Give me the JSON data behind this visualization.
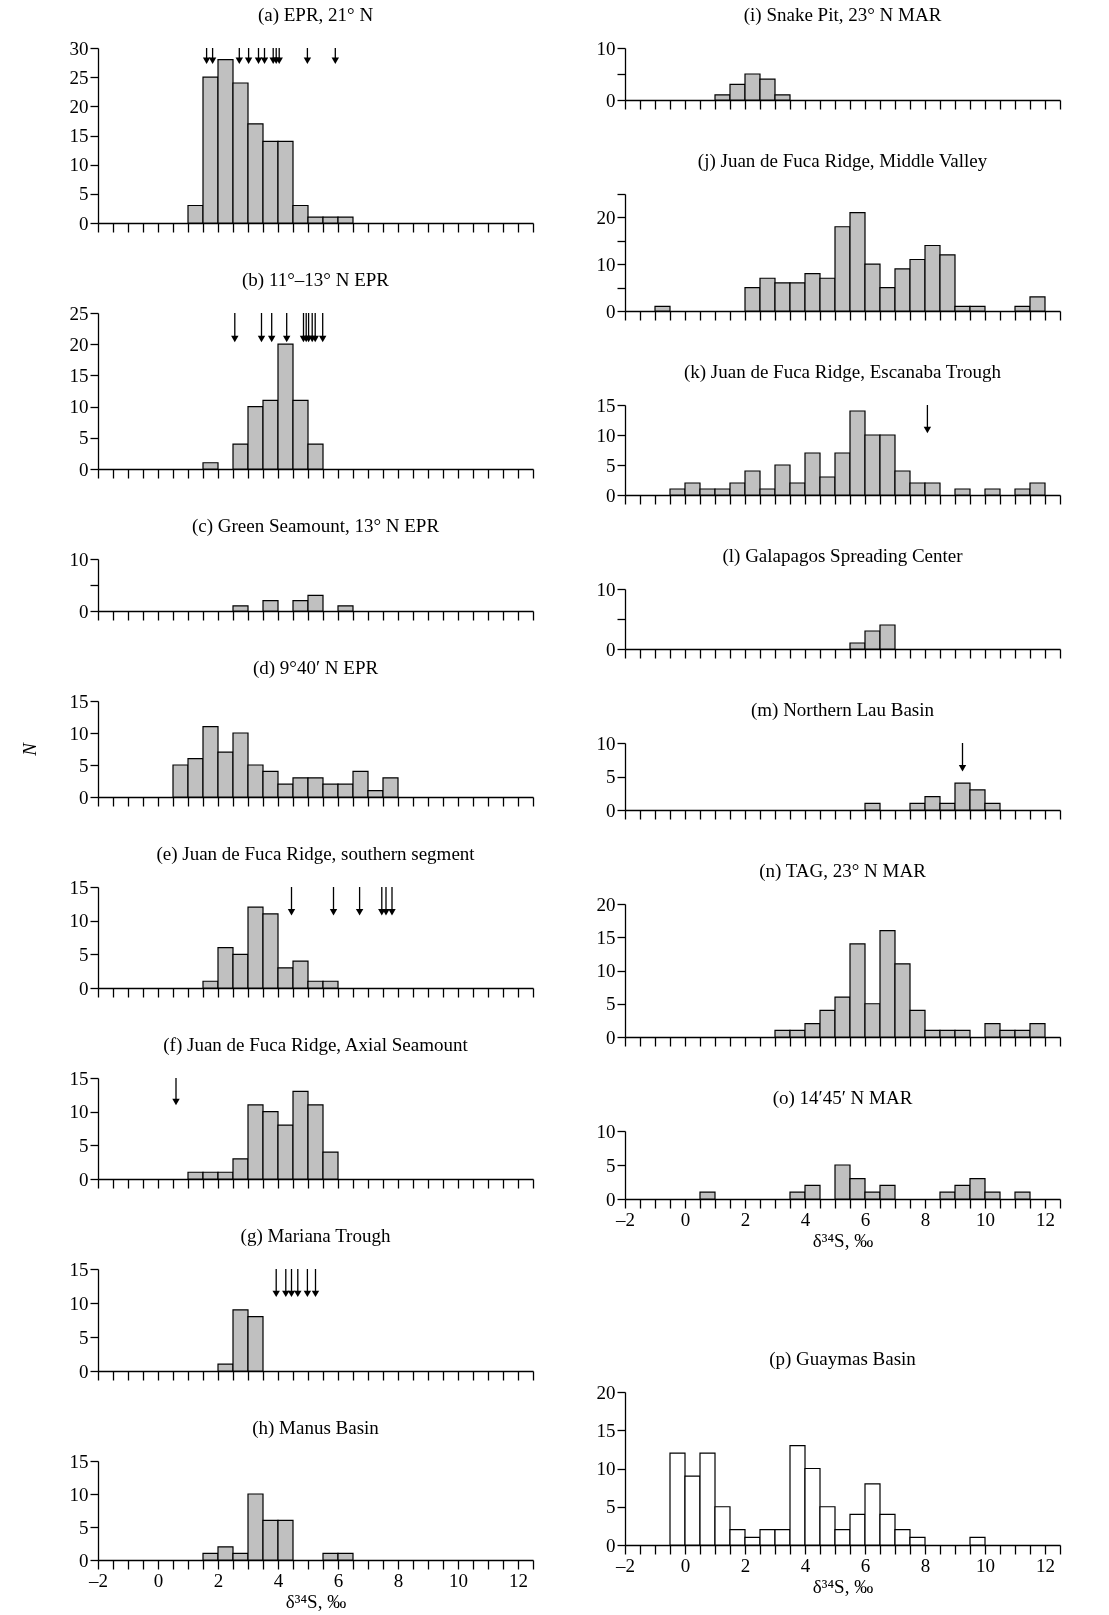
{
  "chart_data": [
    {
      "type": "histogram",
      "title": "(a)  EPR, 21° N",
      "color": "#c0c0c0",
      "bins": [
        1,
        1.5,
        2,
        2.5,
        3,
        3.5,
        4,
        4.5,
        5,
        5.5,
        6,
        6.5
      ],
      "values": [
        3,
        25,
        28,
        24,
        17,
        14,
        14,
        3,
        1,
        1,
        1
      ],
      "series": [
        {
          "type": "scatter",
          "marker": "triangle",
          "color": "#000000",
          "x": [
            1.62,
            1.82,
            2.71,
            3.02,
            3.35,
            3.55,
            3.84,
            3.94,
            4.04,
            4.98,
            5.91
          ],
          "values": [
            28,
            28,
            28,
            28,
            28,
            28,
            28,
            28,
            28,
            28,
            28
          ]
        }
      ],
      "xlim": [
        -2,
        12.5
      ],
      "ylim": [
        0,
        30
      ],
      "yticks": [
        0,
        5,
        10,
        15,
        20,
        25,
        30
      ],
      "tick_labels": "y",
      "xticks": [
        -2,
        {
          "value": -1.5,
          "label": null
        },
        {
          "value": -1,
          "label": null
        },
        {
          "value": -0.5,
          "label": null
        },
        0,
        {
          "value": 0.5,
          "label": null
        },
        {
          "value": 1,
          "label": null
        },
        {
          "value": 1.5,
          "label": null
        },
        2,
        {
          "value": 2.5,
          "label": null
        },
        {
          "value": 3,
          "label": null
        },
        {
          "value": 3.5,
          "label": null
        },
        4,
        {
          "value": 4.5,
          "label": null
        },
        {
          "value": 5,
          "label": null
        },
        {
          "value": 5.5,
          "label": null
        },
        6,
        {
          "value": 6.5,
          "label": null
        },
        {
          "value": 7,
          "label": null
        },
        {
          "value": 7.5,
          "label": null
        },
        8,
        {
          "value": 8.5,
          "label": null
        },
        {
          "value": 9,
          "label": null
        },
        {
          "value": 9.5,
          "label": null
        },
        10,
        {
          "value": 10.5,
          "label": null
        },
        {
          "value": 11,
          "label": null
        },
        {
          "value": 11.5,
          "label": null
        },
        12,
        {
          "value": 12.5,
          "label": null
        }
      ]
    },
    {
      "type": "histogram",
      "title": "(b)  11°–13° N EPR",
      "color": "#c0c0c0",
      "bins": [
        1.5,
        2,
        2.5,
        3,
        3.5,
        4,
        4.5,
        5,
        5.5
      ],
      "values": [
        1,
        0,
        4,
        10,
        11,
        20,
        11,
        4
      ],
      "series": [
        {
          "type": "scatter",
          "marker": "triangle",
          "color": "#000000",
          "x": [
            2.56,
            3.45,
            3.79,
            4.29,
            4.85,
            4.94,
            5.02,
            5.14,
            5.24,
            5.49
          ],
          "values": [
            21,
            21,
            21,
            21,
            21,
            21,
            21,
            21,
            21,
            21
          ]
        }
      ],
      "xlim": [
        -2,
        12.5
      ],
      "ylim": [
        0,
        25
      ],
      "yticks": [
        0,
        5,
        10,
        15,
        20,
        25
      ],
      "tick_labels": "y",
      "xticks": [
        -2,
        {
          "value": -1.5,
          "label": null
        },
        {
          "value": -1,
          "label": null
        },
        {
          "value": -0.5,
          "label": null
        },
        0,
        {
          "value": 0.5,
          "label": null
        },
        {
          "value": 1,
          "label": null
        },
        {
          "value": 1.5,
          "label": null
        },
        2,
        {
          "value": 2.5,
          "label": null
        },
        {
          "value": 3,
          "label": null
        },
        {
          "value": 3.5,
          "label": null
        },
        4,
        {
          "value": 4.5,
          "label": null
        },
        {
          "value": 5,
          "label": null
        },
        {
          "value": 5.5,
          "label": null
        },
        6,
        {
          "value": 6.5,
          "label": null
        },
        {
          "value": 7,
          "label": null
        },
        {
          "value": 7.5,
          "label": null
        },
        8,
        {
          "value": 8.5,
          "label": null
        },
        {
          "value": 9,
          "label": null
        },
        {
          "value": 9.5,
          "label": null
        },
        10,
        {
          "value": 10.5,
          "label": null
        },
        {
          "value": 11,
          "label": null
        },
        {
          "value": 11.5,
          "label": null
        },
        12,
        {
          "value": 12.5,
          "label": null
        }
      ]
    },
    {
      "type": "histogram",
      "title": "(c)  Green Seamount, 13° N EPR",
      "color": "#c0c0c0",
      "bins": [
        2.5,
        3,
        3.5,
        4,
        4.5,
        5,
        5.5,
        6,
        6.5
      ],
      "values": [
        1,
        0,
        2,
        0,
        2,
        3,
        0,
        1
      ],
      "xlim": [
        -2,
        12.5
      ],
      "ylim": [
        0,
        10
      ],
      "yticks": [
        0,
        {
          "value": 5,
          "label": null
        },
        10
      ],
      "tick_labels": "y",
      "xticks": [
        -2,
        {
          "value": -1.5,
          "label": null
        },
        {
          "value": -1,
          "label": null
        },
        {
          "value": -0.5,
          "label": null
        },
        0,
        {
          "value": 0.5,
          "label": null
        },
        {
          "value": 1,
          "label": null
        },
        {
          "value": 1.5,
          "label": null
        },
        2,
        {
          "value": 2.5,
          "label": null
        },
        {
          "value": 3,
          "label": null
        },
        {
          "value": 3.5,
          "label": null
        },
        4,
        {
          "value": 4.5,
          "label": null
        },
        {
          "value": 5,
          "label": null
        },
        {
          "value": 5.5,
          "label": null
        },
        6,
        {
          "value": 6.5,
          "label": null
        },
        {
          "value": 7,
          "label": null
        },
        {
          "value": 7.5,
          "label": null
        },
        8,
        {
          "value": 8.5,
          "label": null
        },
        {
          "value": 9,
          "label": null
        },
        {
          "value": 9.5,
          "label": null
        },
        10,
        {
          "value": 10.5,
          "label": null
        },
        {
          "value": 11,
          "label": null
        },
        {
          "value": 11.5,
          "label": null
        },
        12,
        {
          "value": 12.5,
          "label": null
        }
      ]
    },
    {
      "type": "histogram",
      "title": "(d)  9°40′ N EPR",
      "ylabel": "N",
      "color": "#c0c0c0",
      "bins": [
        0.5,
        1,
        1.5,
        2,
        2.5,
        3,
        3.5,
        4,
        4.5,
        5,
        5.5,
        6,
        6.5,
        7,
        7.5,
        8
      ],
      "values": [
        5,
        6,
        11,
        7,
        10,
        5,
        4,
        2,
        3,
        3,
        2,
        2,
        4,
        1,
        3
      ],
      "xlim": [
        -2,
        12.5
      ],
      "ylim": [
        0,
        15
      ],
      "yticks": [
        0,
        5,
        10,
        15
      ],
      "tick_labels": "y",
      "xticks": [
        -2,
        {
          "value": -1.5,
          "label": null
        },
        {
          "value": -1,
          "label": null
        },
        {
          "value": -0.5,
          "label": null
        },
        0,
        {
          "value": 0.5,
          "label": null
        },
        {
          "value": 1,
          "label": null
        },
        {
          "value": 1.5,
          "label": null
        },
        2,
        {
          "value": 2.5,
          "label": null
        },
        {
          "value": 3,
          "label": null
        },
        {
          "value": 3.5,
          "label": null
        },
        4,
        {
          "value": 4.5,
          "label": null
        },
        {
          "value": 5,
          "label": null
        },
        {
          "value": 5.5,
          "label": null
        },
        6,
        {
          "value": 6.5,
          "label": null
        },
        {
          "value": 7,
          "label": null
        },
        {
          "value": 7.5,
          "label": null
        },
        8,
        {
          "value": 8.5,
          "label": null
        },
        {
          "value": 9,
          "label": null
        },
        {
          "value": 9.5,
          "label": null
        },
        10,
        {
          "value": 10.5,
          "label": null
        },
        {
          "value": 11,
          "label": null
        },
        {
          "value": 11.5,
          "label": null
        },
        12,
        {
          "value": 12.5,
          "label": null
        }
      ]
    },
    {
      "type": "histogram",
      "title": "(e)  Juan de Fuca Ridge, southern segment",
      "color": "#c0c0c0",
      "bins": [
        1.5,
        2,
        2.5,
        3,
        3.5,
        4,
        4.5,
        5,
        5.5,
        6
      ],
      "values": [
        1,
        6,
        5,
        12,
        11,
        3,
        4,
        1,
        1
      ],
      "series": [
        {
          "type": "scatter",
          "marker": "triangle",
          "color": "#000000",
          "x": [
            4.45,
            5.85,
            6.72,
            7.46,
            7.6,
            7.8
          ],
          "values": [
            11.4,
            11.4,
            11.4,
            11.4,
            11.4,
            11.4
          ]
        }
      ],
      "xlim": [
        -2,
        12.5
      ],
      "ylim": [
        0,
        15
      ],
      "yticks": [
        0,
        5,
        10,
        15
      ],
      "tick_labels": "y",
      "xticks": [
        -2,
        {
          "value": -1.5,
          "label": null
        },
        {
          "value": -1,
          "label": null
        },
        {
          "value": -0.5,
          "label": null
        },
        0,
        {
          "value": 0.5,
          "label": null
        },
        {
          "value": 1,
          "label": null
        },
        {
          "value": 1.5,
          "label": null
        },
        2,
        {
          "value": 2.5,
          "label": null
        },
        {
          "value": 3,
          "label": null
        },
        {
          "value": 3.5,
          "label": null
        },
        4,
        {
          "value": 4.5,
          "label": null
        },
        {
          "value": 5,
          "label": null
        },
        {
          "value": 5.5,
          "label": null
        },
        6,
        {
          "value": 6.5,
          "label": null
        },
        {
          "value": 7,
          "label": null
        },
        {
          "value": 7.5,
          "label": null
        },
        8,
        {
          "value": 8.5,
          "label": null
        },
        {
          "value": 9,
          "label": null
        },
        {
          "value": 9.5,
          "label": null
        },
        10,
        {
          "value": 10.5,
          "label": null
        },
        {
          "value": 11,
          "label": null
        },
        {
          "value": 11.5,
          "label": null
        },
        12,
        {
          "value": 12.5,
          "label": null
        }
      ]
    },
    {
      "type": "histogram",
      "title": "(f)  Juan de Fuca Ridge, Axial Seamount",
      "color": "#c0c0c0",
      "bins": [
        1,
        1.5,
        2,
        2.5,
        3,
        3.5,
        4,
        4.5,
        5,
        5.5,
        6
      ],
      "values": [
        1,
        1,
        1,
        3,
        11,
        10,
        8,
        13,
        11,
        4
      ],
      "series": [
        {
          "type": "scatter",
          "marker": "triangle",
          "color": "#000000",
          "x": [
            0.6
          ],
          "values": [
            11.6
          ]
        }
      ],
      "xlim": [
        -2,
        12.5
      ],
      "ylim": [
        0,
        15
      ],
      "yticks": [
        0,
        5,
        10,
        15
      ],
      "tick_labels": "y",
      "xticks": [
        -2,
        {
          "value": -1.5,
          "label": null
        },
        {
          "value": -1,
          "label": null
        },
        {
          "value": -0.5,
          "label": null
        },
        0,
        {
          "value": 0.5,
          "label": null
        },
        {
          "value": 1,
          "label": null
        },
        {
          "value": 1.5,
          "label": null
        },
        2,
        {
          "value": 2.5,
          "label": null
        },
        {
          "value": 3,
          "label": null
        },
        {
          "value": 3.5,
          "label": null
        },
        4,
        {
          "value": 4.5,
          "label": null
        },
        {
          "value": 5,
          "label": null
        },
        {
          "value": 5.5,
          "label": null
        },
        6,
        {
          "value": 6.5,
          "label": null
        },
        {
          "value": 7,
          "label": null
        },
        {
          "value": 7.5,
          "label": null
        },
        8,
        {
          "value": 8.5,
          "label": null
        },
        {
          "value": 9,
          "label": null
        },
        {
          "value": 9.5,
          "label": null
        },
        10,
        {
          "value": 10.5,
          "label": null
        },
        {
          "value": 11,
          "label": null
        },
        {
          "value": 11.5,
          "label": null
        },
        12,
        {
          "value": 12.5,
          "label": null
        }
      ]
    },
    {
      "type": "histogram",
      "title": "(g)  Mariana Trough",
      "color": "#c0c0c0",
      "bins": [
        2,
        2.5,
        3,
        3.5
      ],
      "values": [
        1,
        9,
        8
      ],
      "series": [
        {
          "type": "scatter",
          "marker": "triangle",
          "color": "#000000",
          "x": [
            3.94,
            4.26,
            4.45,
            4.66,
            4.98,
            5.25
          ],
          "values": [
            11.5,
            11.5,
            11.5,
            11.5,
            11.5,
            11.5
          ]
        }
      ],
      "xlim": [
        -2,
        12.5
      ],
      "ylim": [
        0,
        15
      ],
      "yticks": [
        0,
        5,
        10,
        15
      ],
      "tick_labels": "y",
      "xticks": [
        -2,
        {
          "value": -1.5,
          "label": null
        },
        {
          "value": -1,
          "label": null
        },
        {
          "value": -0.5,
          "label": null
        },
        0,
        {
          "value": 0.5,
          "label": null
        },
        {
          "value": 1,
          "label": null
        },
        {
          "value": 1.5,
          "label": null
        },
        2,
        {
          "value": 2.5,
          "label": null
        },
        {
          "value": 3,
          "label": null
        },
        {
          "value": 3.5,
          "label": null
        },
        4,
        {
          "value": 4.5,
          "label": null
        },
        {
          "value": 5,
          "label": null
        },
        {
          "value": 5.5,
          "label": null
        },
        6,
        {
          "value": 6.5,
          "label": null
        },
        {
          "value": 7,
          "label": null
        },
        {
          "value": 7.5,
          "label": null
        },
        8,
        {
          "value": 8.5,
          "label": null
        },
        {
          "value": 9,
          "label": null
        },
        {
          "value": 9.5,
          "label": null
        },
        10,
        {
          "value": 10.5,
          "label": null
        },
        {
          "value": 11,
          "label": null
        },
        {
          "value": 11.5,
          "label": null
        },
        12,
        {
          "value": 12.5,
          "label": null
        }
      ]
    },
    {
      "type": "histogram",
      "title": "(h)  Manus Basin",
      "xlabel": "δ³⁴S, ‰",
      "color": "#c0c0c0",
      "bins": [
        1.5,
        2,
        2.5,
        3,
        3.5,
        4,
        4.5,
        5,
        5.5,
        6,
        6.5
      ],
      "values": [
        1,
        2,
        1,
        10,
        6,
        6,
        0,
        0,
        1,
        1
      ],
      "xlim": [
        -2,
        12.5
      ],
      "ylim": [
        0,
        15
      ],
      "yticks": [
        0,
        5,
        10,
        15
      ],
      "xticks": [
        {
          "value": -2,
          "label": "–2"
        },
        {
          "value": -1.5,
          "label": null
        },
        {
          "value": -1,
          "label": null
        },
        {
          "value": -0.5,
          "label": null
        },
        0,
        {
          "value": 0.5,
          "label": null
        },
        {
          "value": 1,
          "label": null
        },
        {
          "value": 1.5,
          "label": null
        },
        2,
        {
          "value": 2.5,
          "label": null
        },
        {
          "value": 3,
          "label": null
        },
        {
          "value": 3.5,
          "label": null
        },
        4,
        {
          "value": 4.5,
          "label": null
        },
        {
          "value": 5,
          "label": null
        },
        {
          "value": 5.5,
          "label": null
        },
        6,
        {
          "value": 6.5,
          "label": null
        },
        {
          "value": 7,
          "label": null
        },
        {
          "value": 7.5,
          "label": null
        },
        8,
        {
          "value": 8.5,
          "label": null
        },
        {
          "value": 9,
          "label": null
        },
        {
          "value": 9.5,
          "label": null
        },
        10,
        {
          "value": 10.5,
          "label": null
        },
        {
          "value": 11,
          "label": null
        },
        {
          "value": 11.5,
          "label": null
        },
        12,
        {
          "value": 12.5,
          "label": null
        }
      ]
    },
    {
      "type": "histogram",
      "title": "(i)  Snake Pit, 23° N MAR",
      "color": "#c0c0c0",
      "bins": [
        1,
        1.5,
        2,
        2.5,
        3,
        3.5
      ],
      "values": [
        1,
        3,
        5,
        4,
        1
      ],
      "xlim": [
        -2,
        12.5
      ],
      "ylim": [
        0,
        10
      ],
      "yticks": [
        0,
        {
          "value": 5,
          "label": null
        },
        10
      ],
      "tick_labels": "y",
      "xticks": [
        -2,
        {
          "value": -1.5,
          "label": null
        },
        {
          "value": -1,
          "label": null
        },
        {
          "value": -0.5,
          "label": null
        },
        0,
        {
          "value": 0.5,
          "label": null
        },
        {
          "value": 1,
          "label": null
        },
        {
          "value": 1.5,
          "label": null
        },
        2,
        {
          "value": 2.5,
          "label": null
        },
        {
          "value": 3,
          "label": null
        },
        {
          "value": 3.5,
          "label": null
        },
        4,
        {
          "value": 4.5,
          "label": null
        },
        {
          "value": 5,
          "label": null
        },
        {
          "value": 5.5,
          "label": null
        },
        6,
        {
          "value": 6.5,
          "label": null
        },
        {
          "value": 7,
          "label": null
        },
        {
          "value": 7.5,
          "label": null
        },
        8,
        {
          "value": 8.5,
          "label": null
        },
        {
          "value": 9,
          "label": null
        },
        {
          "value": 9.5,
          "label": null
        },
        10,
        {
          "value": 10.5,
          "label": null
        },
        {
          "value": 11,
          "label": null
        },
        {
          "value": 11.5,
          "label": null
        },
        12,
        {
          "value": 12.5,
          "label": null
        }
      ]
    },
    {
      "type": "histogram",
      "title": "(j)  Juan de Fuca Ridge, Middle Valley",
      "color": "#c0c0c0",
      "bins": [
        -1,
        -0.5,
        0,
        0.5,
        1,
        1.5,
        2,
        2.5,
        3,
        3.5,
        4,
        4.5,
        5,
        5.5,
        6,
        6.5,
        7,
        7.5,
        8,
        8.5,
        9,
        9.5,
        10,
        10.5,
        11,
        11.5,
        12
      ],
      "values": [
        1,
        0,
        0,
        0,
        0,
        0,
        5,
        7,
        6,
        6,
        8,
        7,
        18,
        21,
        10,
        5,
        9,
        11,
        14,
        12,
        1,
        1,
        0,
        0,
        1,
        3
      ],
      "xlim": [
        -2,
        12.5
      ],
      "ylim": [
        0,
        25
      ],
      "yticks": [
        0,
        {
          "value": 5,
          "label": null
        },
        10,
        {
          "value": 15,
          "label": null
        },
        20,
        {
          "value": 25,
          "label": null
        }
      ],
      "tick_labels": "y",
      "xticks": [
        -2,
        {
          "value": -1.5,
          "label": null
        },
        {
          "value": -1,
          "label": null
        },
        {
          "value": -0.5,
          "label": null
        },
        0,
        {
          "value": 0.5,
          "label": null
        },
        {
          "value": 1,
          "label": null
        },
        {
          "value": 1.5,
          "label": null
        },
        2,
        {
          "value": 2.5,
          "label": null
        },
        {
          "value": 3,
          "label": null
        },
        {
          "value": 3.5,
          "label": null
        },
        4,
        {
          "value": 4.5,
          "label": null
        },
        {
          "value": 5,
          "label": null
        },
        {
          "value": 5.5,
          "label": null
        },
        6,
        {
          "value": 6.5,
          "label": null
        },
        {
          "value": 7,
          "label": null
        },
        {
          "value": 7.5,
          "label": null
        },
        8,
        {
          "value": 8.5,
          "label": null
        },
        {
          "value": 9,
          "label": null
        },
        {
          "value": 9.5,
          "label": null
        },
        10,
        {
          "value": 10.5,
          "label": null
        },
        {
          "value": 11,
          "label": null
        },
        {
          "value": 11.5,
          "label": null
        },
        12,
        {
          "value": 12.5,
          "label": null
        }
      ]
    },
    {
      "type": "histogram",
      "title": "(k) Juan de Fuca Ridge, Escanaba Trough",
      "color": "#c0c0c0",
      "bins": [
        -0.5,
        0,
        0.5,
        1,
        1.5,
        2,
        2.5,
        3,
        3.5,
        4,
        4.5,
        5,
        5.5,
        6,
        6.5,
        7,
        7.5,
        8,
        8.5,
        9,
        9.5,
        10,
        10.5,
        11,
        11.5,
        12
      ],
      "values": [
        1,
        2,
        1,
        1,
        2,
        4,
        1,
        5,
        2,
        7,
        3,
        7,
        14,
        10,
        10,
        4,
        2,
        2,
        0,
        1,
        0,
        1,
        0,
        1,
        2
      ],
      "series": [
        {
          "type": "scatter",
          "marker": "triangle",
          "color": "#000000",
          "x": [
            8.08
          ],
          "values": [
            11
          ]
        }
      ],
      "xlim": [
        -2,
        12.5
      ],
      "ylim": [
        0,
        15
      ],
      "yticks": [
        0,
        5,
        10,
        15
      ],
      "tick_labels": "y",
      "xticks": [
        -2,
        {
          "value": -1.5,
          "label": null
        },
        {
          "value": -1,
          "label": null
        },
        {
          "value": -0.5,
          "label": null
        },
        0,
        {
          "value": 0.5,
          "label": null
        },
        {
          "value": 1,
          "label": null
        },
        {
          "value": 1.5,
          "label": null
        },
        2,
        {
          "value": 2.5,
          "label": null
        },
        {
          "value": 3,
          "label": null
        },
        {
          "value": 3.5,
          "label": null
        },
        4,
        {
          "value": 4.5,
          "label": null
        },
        {
          "value": 5,
          "label": null
        },
        {
          "value": 5.5,
          "label": null
        },
        6,
        {
          "value": 6.5,
          "label": null
        },
        {
          "value": 7,
          "label": null
        },
        {
          "value": 7.5,
          "label": null
        },
        8,
        {
          "value": 8.5,
          "label": null
        },
        {
          "value": 9,
          "label": null
        },
        {
          "value": 9.5,
          "label": null
        },
        10,
        {
          "value": 10.5,
          "label": null
        },
        {
          "value": 11,
          "label": null
        },
        {
          "value": 11.5,
          "label": null
        },
        12,
        {
          "value": 12.5,
          "label": null
        }
      ]
    },
    {
      "type": "histogram",
      "title": "(l)  Galapagos Spreading Center",
      "color": "#c0c0c0",
      "bins": [
        5.5,
        6,
        6.5,
        7
      ],
      "values": [
        1,
        3,
        4
      ],
      "xlim": [
        -2,
        12.5
      ],
      "ylim": [
        0,
        10
      ],
      "yticks": [
        0,
        {
          "value": 5,
          "label": null
        },
        10
      ],
      "tick_labels": "y",
      "xticks": [
        -2,
        {
          "value": -1.5,
          "label": null
        },
        {
          "value": -1,
          "label": null
        },
        {
          "value": -0.5,
          "label": null
        },
        0,
        {
          "value": 0.5,
          "label": null
        },
        {
          "value": 1,
          "label": null
        },
        {
          "value": 1.5,
          "label": null
        },
        2,
        {
          "value": 2.5,
          "label": null
        },
        {
          "value": 3,
          "label": null
        },
        {
          "value": 3.5,
          "label": null
        },
        4,
        {
          "value": 4.5,
          "label": null
        },
        {
          "value": 5,
          "label": null
        },
        {
          "value": 5.5,
          "label": null
        },
        6,
        {
          "value": 6.5,
          "label": null
        },
        {
          "value": 7,
          "label": null
        },
        {
          "value": 7.5,
          "label": null
        },
        8,
        {
          "value": 8.5,
          "label": null
        },
        {
          "value": 9,
          "label": null
        },
        {
          "value": 9.5,
          "label": null
        },
        10,
        {
          "value": 10.5,
          "label": null
        },
        {
          "value": 11,
          "label": null
        },
        {
          "value": 11.5,
          "label": null
        },
        12,
        {
          "value": 12.5,
          "label": null
        }
      ]
    },
    {
      "type": "histogram",
      "title": "(m)  Northern Lau Basin",
      "color": "#c0c0c0",
      "bins": [
        6,
        6.5,
        7,
        7.5,
        8,
        8.5,
        9,
        9.5,
        10,
        10.5
      ],
      "values": [
        1,
        0,
        0,
        1,
        2,
        1,
        4,
        3,
        1
      ],
      "series": [
        {
          "type": "scatter",
          "marker": "triangle",
          "color": "#000000",
          "x": [
            9.25
          ],
          "values": [
            6.4
          ]
        }
      ],
      "xlim": [
        -2,
        12.5
      ],
      "ylim": [
        0,
        10
      ],
      "yticks": [
        0,
        5,
        10
      ],
      "tick_labels": "y",
      "xticks": [
        -2,
        {
          "value": -1.5,
          "label": null
        },
        {
          "value": -1,
          "label": null
        },
        {
          "value": -0.5,
          "label": null
        },
        0,
        {
          "value": 0.5,
          "label": null
        },
        {
          "value": 1,
          "label": null
        },
        {
          "value": 1.5,
          "label": null
        },
        2,
        {
          "value": 2.5,
          "label": null
        },
        {
          "value": 3,
          "label": null
        },
        {
          "value": 3.5,
          "label": null
        },
        4,
        {
          "value": 4.5,
          "label": null
        },
        {
          "value": 5,
          "label": null
        },
        {
          "value": 5.5,
          "label": null
        },
        6,
        {
          "value": 6.5,
          "label": null
        },
        {
          "value": 7,
          "label": null
        },
        {
          "value": 7.5,
          "label": null
        },
        8,
        {
          "value": 8.5,
          "label": null
        },
        {
          "value": 9,
          "label": null
        },
        {
          "value": 9.5,
          "label": null
        },
        10,
        {
          "value": 10.5,
          "label": null
        },
        {
          "value": 11,
          "label": null
        },
        {
          "value": 11.5,
          "label": null
        },
        12,
        {
          "value": 12.5,
          "label": null
        }
      ]
    },
    {
      "type": "histogram",
      "title": "(n)  TAG, 23° N MAR",
      "color": "#c0c0c0",
      "bins": [
        3,
        3.5,
        4,
        4.5,
        5,
        5.5,
        6,
        6.5,
        7,
        7.5,
        8,
        8.5,
        9,
        9.5,
        10,
        10.5,
        11,
        11.5,
        12
      ],
      "values": [
        1,
        1,
        2,
        4,
        6,
        14,
        5,
        16,
        11,
        4,
        1,
        1,
        1,
        0,
        2,
        1,
        1,
        2
      ],
      "xlim": [
        -2,
        12.5
      ],
      "ylim": [
        0,
        20
      ],
      "yticks": [
        0,
        5,
        10,
        15,
        20
      ],
      "tick_labels": "y",
      "xticks": [
        -2,
        {
          "value": -1.5,
          "label": null
        },
        {
          "value": -1,
          "label": null
        },
        {
          "value": -0.5,
          "label": null
        },
        0,
        {
          "value": 0.5,
          "label": null
        },
        {
          "value": 1,
          "label": null
        },
        {
          "value": 1.5,
          "label": null
        },
        2,
        {
          "value": 2.5,
          "label": null
        },
        {
          "value": 3,
          "label": null
        },
        {
          "value": 3.5,
          "label": null
        },
        4,
        {
          "value": 4.5,
          "label": null
        },
        {
          "value": 5,
          "label": null
        },
        {
          "value": 5.5,
          "label": null
        },
        6,
        {
          "value": 6.5,
          "label": null
        },
        {
          "value": 7,
          "label": null
        },
        {
          "value": 7.5,
          "label": null
        },
        8,
        {
          "value": 8.5,
          "label": null
        },
        {
          "value": 9,
          "label": null
        },
        {
          "value": 9.5,
          "label": null
        },
        10,
        {
          "value": 10.5,
          "label": null
        },
        {
          "value": 11,
          "label": null
        },
        {
          "value": 11.5,
          "label": null
        },
        12,
        {
          "value": 12.5,
          "label": null
        }
      ]
    },
    {
      "type": "histogram",
      "title": "(o)  14′45′ N MAR",
      "xlabel": "δ³⁴S, ‰",
      "color": "#c0c0c0",
      "bins": [
        0.5,
        1,
        1.5,
        2,
        2.5,
        3,
        3.5,
        4,
        4.5,
        5,
        5.5,
        6,
        6.5,
        7,
        7.5,
        8,
        8.5,
        9,
        9.5,
        10,
        10.5,
        11,
        11.5
      ],
      "values": [
        1,
        0,
        0,
        0,
        0,
        0,
        1,
        2,
        0,
        5,
        3,
        1,
        2,
        0,
        0,
        0,
        1,
        2,
        3,
        1,
        0,
        1
      ],
      "xlim": [
        -2,
        12.5
      ],
      "ylim": [
        0,
        10
      ],
      "yticks": [
        0,
        5,
        10
      ],
      "xticks": [
        {
          "value": -2,
          "label": "–2"
        },
        {
          "value": -1.5,
          "label": null
        },
        {
          "value": -1,
          "label": null
        },
        {
          "value": -0.5,
          "label": null
        },
        0,
        {
          "value": 0.5,
          "label": null
        },
        {
          "value": 1,
          "label": null
        },
        {
          "value": 1.5,
          "label": null
        },
        2,
        {
          "value": 2.5,
          "label": null
        },
        {
          "value": 3,
          "label": null
        },
        {
          "value": 3.5,
          "label": null
        },
        4,
        {
          "value": 4.5,
          "label": null
        },
        {
          "value": 5,
          "label": null
        },
        {
          "value": 5.5,
          "label": null
        },
        6,
        {
          "value": 6.5,
          "label": null
        },
        {
          "value": 7,
          "label": null
        },
        {
          "value": 7.5,
          "label": null
        },
        8,
        {
          "value": 8.5,
          "label": null
        },
        {
          "value": 9,
          "label": null
        },
        {
          "value": 9.5,
          "label": null
        },
        10,
        {
          "value": 10.5,
          "label": null
        },
        {
          "value": 11,
          "label": null
        },
        {
          "value": 11.5,
          "label": null
        },
        12,
        {
          "value": 12.5,
          "label": null
        }
      ]
    },
    {
      "type": "histogram",
      "title": "(p)  Guaymas Basin",
      "xlabel": "δ³⁴S, ‰",
      "color": "#ffffff",
      "bins": [
        -0.5,
        0,
        0.5,
        1,
        1.5,
        2,
        2.5,
        3,
        3.5,
        4,
        4.5,
        5,
        5.5,
        6,
        6.5,
        7,
        7.5,
        8,
        8.5,
        9,
        9.5,
        10
      ],
      "values": [
        12,
        9,
        12,
        5,
        2,
        1,
        2,
        2,
        13,
        10,
        5,
        2,
        4,
        8,
        4,
        2,
        1,
        0,
        0,
        0,
        1
      ],
      "xlim": [
        -2,
        12.5
      ],
      "ylim": [
        0,
        20
      ],
      "yticks": [
        0,
        5,
        10,
        15,
        20
      ],
      "xticks": [
        {
          "value": -2,
          "label": "–2"
        },
        {
          "value": -1.5,
          "label": null
        },
        {
          "value": -1,
          "label": null
        },
        {
          "value": -0.5,
          "label": null
        },
        0,
        {
          "value": 0.5,
          "label": null
        },
        {
          "value": 1,
          "label": null
        },
        {
          "value": 1.5,
          "label": null
        },
        2,
        {
          "value": 2.5,
          "label": null
        },
        {
          "value": 3,
          "label": null
        },
        {
          "value": 3.5,
          "label": null
        },
        4,
        {
          "value": 4.5,
          "label": null
        },
        {
          "value": 5,
          "label": null
        },
        {
          "value": 5.5,
          "label": null
        },
        6,
        {
          "value": 6.5,
          "label": null
        },
        {
          "value": 7,
          "label": null
        },
        {
          "value": 7.5,
          "label": null
        },
        8,
        {
          "value": 8.5,
          "label": null
        },
        {
          "value": 9,
          "label": null
        },
        {
          "value": 9.5,
          "label": null
        },
        10,
        {
          "value": 10.5,
          "label": null
        },
        {
          "value": 11,
          "label": null
        },
        {
          "value": 11.5,
          "label": null
        },
        12,
        {
          "value": 12.5,
          "label": null
        }
      ]
    }
  ]
}
